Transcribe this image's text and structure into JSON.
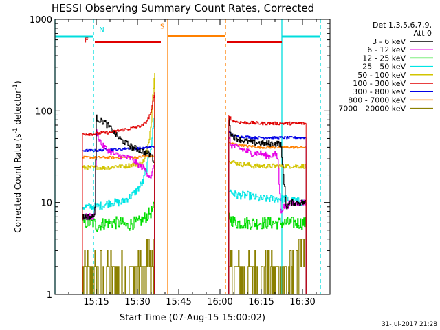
{
  "chart_data": {
    "type": "line",
    "title": "HESSI Observing Summary Count Rates, Corrected",
    "xlabel": "Start Time (07-Aug-15 15:00:02)",
    "ylabel": "Corrected Count Rate (s",
    "ylabel_sup": "-1",
    "ylabel_tail": " detector",
    "ylabel_end": ")",
    "yscale": "log",
    "xlim": [
      0,
      100
    ],
    "ylim": [
      1,
      1000
    ],
    "x_unit": "minutes after 15:00:02",
    "x_ticks": [
      {
        "value": 15,
        "label": "15:15"
      },
      {
        "value": 30,
        "label": "15:30"
      },
      {
        "value": 45,
        "label": "15:45"
      },
      {
        "value": 60,
        "label": "16:00"
      },
      {
        "value": 75,
        "label": "16:15"
      },
      {
        "value": 90,
        "label": "16:30"
      }
    ],
    "y_ticks": [
      {
        "value": 1,
        "label": "1"
      },
      {
        "value": 10,
        "label": "10"
      },
      {
        "value": 100,
        "label": "100"
      },
      {
        "value": 1000,
        "label": "1000"
      }
    ],
    "legend": {
      "placement": "right",
      "header": [
        "Det 1,3,5,6,7,9,",
        "Att 0"
      ]
    },
    "series": [
      {
        "name": "3 - 6 keV",
        "color": "#000000",
        "noise": 0.04,
        "segments": [
          {
            "x": [
              10,
              14,
              14.5,
              15,
              16,
              18,
              20,
              22,
              24,
              26,
              28,
              30,
              32,
              33,
              34,
              35,
              35.5,
              36.2
            ],
            "y": [
              7,
              7,
              9,
              84,
              80,
              75,
              65,
              55,
              48,
              44,
              40,
              38,
              36,
              35,
              34,
              33,
              30,
              28
            ]
          },
          {
            "x": [
              63.2,
              64,
              66,
              68,
              70,
              72,
              74,
              76,
              78,
              80,
              82,
              84,
              86,
              88,
              90,
              91.3
            ],
            "y": [
              80,
              55,
              50,
              48,
              46,
              45,
              45,
              44,
              44,
              44,
              44,
              9,
              10,
              10,
              10,
              10
            ]
          }
        ]
      },
      {
        "name": "6 - 12 keV",
        "color": "#e600e6",
        "noise": 0.04,
        "segments": [
          {
            "x": [
              10,
              14,
              14.5,
              15,
              16,
              17,
              18,
              20,
              22,
              24,
              26,
              28,
              30,
              32,
              33,
              34,
              35,
              36.2
            ],
            "y": [
              7,
              7,
              9,
              60,
              50,
              42,
              40,
              36,
              33,
              32,
              31,
              30,
              26,
              24,
              22,
              20,
              19,
              28
            ]
          },
          {
            "x": [
              63.2,
              64,
              66,
              68,
              70,
              72,
              74,
              76,
              78,
              80,
              81,
              82,
              83,
              84,
              86,
              88,
              90,
              91.3
            ],
            "y": [
              50,
              42,
              40,
              38,
              36,
              34,
              35,
              33,
              32,
              34,
              30,
              8,
              9,
              9,
              10,
              10,
              10,
              10
            ]
          }
        ]
      },
      {
        "name": "12 - 25 keV",
        "color": "#00dd00",
        "noise": 0.08,
        "segments": [
          {
            "x": [
              10,
              14,
              15,
              18,
              20,
              22,
              24,
              26,
              28,
              30,
              32,
              33,
              34,
              35,
              36.2
            ],
            "y": [
              6,
              6,
              5.5,
              6,
              6,
              6,
              6,
              5.5,
              6,
              6,
              6.5,
              7,
              7.5,
              8,
              9
            ]
          },
          {
            "x": [
              63.2,
              64,
              66,
              68,
              70,
              72,
              74,
              76,
              78,
              80,
              82,
              84,
              86,
              88,
              90,
              91.3
            ],
            "y": [
              7,
              6.5,
              6,
              6,
              6,
              6,
              6,
              6,
              6,
              6,
              6,
              6,
              6,
              6,
              6,
              6
            ]
          }
        ]
      },
      {
        "name": "25 - 50 keV",
        "color": "#00e5e5",
        "noise": 0.05,
        "segments": [
          {
            "x": [
              10,
              14,
              15,
              18,
              20,
              22,
              24,
              26,
              28,
              30,
              32,
              33,
              34,
              35,
              36.2
            ],
            "y": [
              9,
              9,
              9,
              9.5,
              10,
              10,
              10,
              11,
              12,
              14,
              17,
              22,
              30,
              45,
              90
            ]
          },
          {
            "x": [
              63.2,
              64,
              66,
              68,
              70,
              72,
              74,
              76,
              78,
              80,
              82,
              84,
              86,
              88,
              90,
              91.3
            ],
            "y": [
              14,
              13,
              12,
              12,
              12,
              11.5,
              11,
              11,
              11,
              11,
              11,
              11,
              10.5,
              10.5,
              10,
              10
            ]
          }
        ]
      },
      {
        "name": "50 - 100 keV",
        "color": "#d2c400",
        "noise": 0.03,
        "segments": [
          {
            "x": [
              10,
              14,
              16,
              18,
              20,
              22,
              24,
              26,
              28,
              30,
              32,
              33,
              34,
              35,
              35.5,
              36.2
            ],
            "y": [
              24,
              24,
              24,
              24,
              24,
              25,
              25,
              25,
              26,
              26,
              28,
              32,
              45,
              80,
              150,
              260
            ]
          },
          {
            "x": [
              63.2,
              64,
              66,
              68,
              70,
              72,
              74,
              76,
              78,
              80,
              82,
              84,
              86,
              88,
              90,
              91.3
            ],
            "y": [
              30,
              28,
              27,
              26,
              26,
              25,
              25,
              25,
              25,
              25,
              25,
              25,
              25,
              25,
              25,
              25
            ]
          }
        ]
      },
      {
        "name": "100 - 300 keV",
        "color": "#e00000",
        "noise": 0.02,
        "segments": [
          {
            "x": [
              10,
              14,
              16,
              18,
              20,
              22,
              24,
              26,
              28,
              30,
              32,
              33,
              34,
              35,
              35.5,
              36.2
            ],
            "y": [
              56,
              56,
              57,
              58,
              58,
              60,
              62,
              63,
              65,
              67,
              70,
              75,
              85,
              100,
              125,
              160
            ]
          },
          {
            "x": [
              63.2,
              64,
              66,
              68,
              70,
              72,
              74,
              76,
              78,
              80,
              82,
              84,
              86,
              88,
              90,
              91.3
            ],
            "y": [
              90,
              80,
              76,
              75,
              74,
              74,
              73,
              73,
              73,
              73,
              73,
              73,
              73,
              73,
              73,
              73
            ]
          }
        ]
      },
      {
        "name": "300 - 800 keV",
        "color": "#0000e6",
        "noise": 0.015,
        "segments": [
          {
            "x": [
              10,
              14,
              16,
              18,
              20,
              22,
              24,
              26,
              28,
              30,
              32,
              34,
              36.2
            ],
            "y": [
              37,
              37,
              37,
              38,
              38,
              38,
              38,
              39,
              39,
              39,
              39,
              40,
              41
            ]
          },
          {
            "x": [
              63.2,
              64,
              66,
              68,
              70,
              72,
              74,
              76,
              78,
              80,
              82,
              84,
              86,
              88,
              90,
              91.3
            ],
            "y": [
              60,
              55,
              53,
              52,
              52,
              51,
              51,
              51,
              51,
              51,
              51,
              51,
              51,
              51,
              51,
              51
            ]
          }
        ]
      },
      {
        "name": "800 - 7000 keV",
        "color": "#ff8000",
        "noise": 0.015,
        "segments": [
          {
            "x": [
              10,
              14,
              16,
              18,
              20,
              22,
              24,
              26,
              28,
              30,
              32,
              34,
              36.2
            ],
            "y": [
              31,
              31,
              31,
              31,
              31,
              31,
              31,
              31,
              31,
              31,
              32,
              32,
              32
            ]
          },
          {
            "x": [
              63.2,
              64,
              66,
              68,
              70,
              72,
              74,
              76,
              78,
              80,
              82,
              84,
              86,
              88,
              90,
              91.3
            ],
            "y": [
              45,
              44,
              43,
              42,
              41,
              41,
              40,
              40,
              40,
              40,
              40,
              40,
              40,
              40,
              40,
              40
            ]
          }
        ]
      },
      {
        "name": "7000 - 20000 keV",
        "color": "#8b8000",
        "noise": 0,
        "levels": [
          1,
          2,
          3
        ],
        "segments": [
          {
            "x": [
              10,
              36.2
            ],
            "y": [
              2,
              2
            ]
          },
          {
            "x": [
              63.2,
              91.3
            ],
            "y": [
              2,
              2
            ]
          }
        ]
      }
    ],
    "markers": {
      "vertical_lines": [
        {
          "x": 0,
          "color": "#00dddd",
          "style": "solid"
        },
        {
          "x": 14,
          "color": "#00dddd",
          "style": "dashed"
        },
        {
          "x": 41,
          "color": "#ff8000",
          "style": "solid"
        },
        {
          "x": 62,
          "color": "#ff8000",
          "style": "dashed"
        },
        {
          "x": 82.5,
          "color": "#00dddd",
          "style": "solid"
        },
        {
          "x": 96.5,
          "color": "#00dddd",
          "style": "dashed"
        }
      ],
      "bars": [
        {
          "x": [
            0,
            14
          ],
          "y": 650,
          "color": "#00dddd"
        },
        {
          "x": [
            14.5,
            38.5
          ],
          "y": 570,
          "color": "#e00000"
        },
        {
          "x": [
            41,
            62
          ],
          "y": 655,
          "color": "#ff8000"
        },
        {
          "x": [
            62.5,
            82.5
          ],
          "y": 570,
          "color": "#e00000"
        },
        {
          "x": [
            82.5,
            96.5
          ],
          "y": 650,
          "color": "#00dddd"
        }
      ],
      "labels": [
        {
          "text": "N",
          "x": 17,
          "y": 730,
          "color": "#00dddd"
        },
        {
          "text": "F",
          "x": 11.5,
          "y": 560,
          "color": "#e00000"
        },
        {
          "text": "S",
          "x": 39,
          "y": 790,
          "color": "#ff8000"
        }
      ]
    }
  },
  "footer": {
    "timestamp": "31-Jul-2017 21:28"
  }
}
